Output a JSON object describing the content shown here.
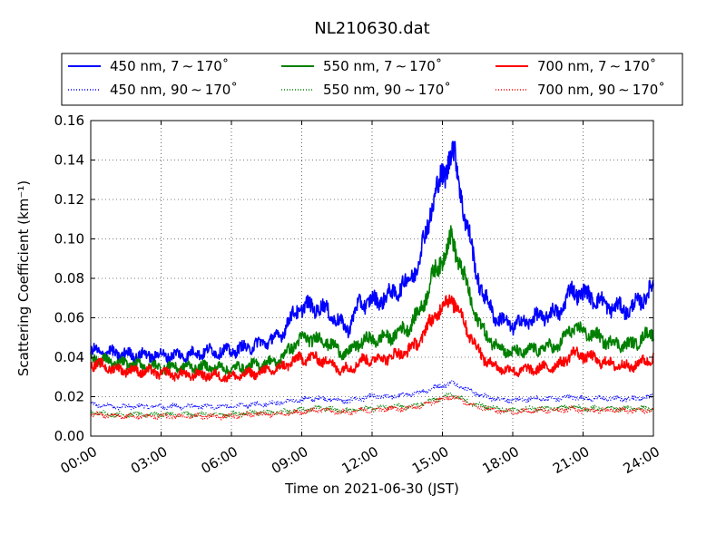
{
  "chart_data": {
    "type": "line",
    "title": "NL210630.dat",
    "xlabel": "Time on 2021-06-30 (JST)",
    "ylabel": "Scattering Coefficient (km⁻¹)",
    "xlim": [
      "00:00",
      "24:00"
    ],
    "ylim": [
      0.0,
      0.16
    ],
    "x_ticks": [
      "00:00",
      "03:00",
      "06:00",
      "09:00",
      "12:00",
      "15:00",
      "18:00",
      "21:00",
      "24:00"
    ],
    "y_ticks": [
      "0.00",
      "0.02",
      "0.04",
      "0.06",
      "0.08",
      "0.10",
      "0.12",
      "0.14",
      "0.16"
    ],
    "grid": true,
    "legend_position": "top",
    "x_hours": [
      0,
      1,
      2,
      3,
      4,
      5,
      6,
      7,
      8,
      8.8,
      9.3,
      10.1,
      10.6,
      11,
      11.5,
      12,
      12.7,
      13.5,
      14,
      14.5,
      14.8,
      15.1,
      15.4,
      15.7,
      16,
      16.4,
      16.8,
      17.3,
      18,
      19,
      20,
      20.5,
      21,
      21.5,
      22,
      23,
      24
    ],
    "series": [
      {
        "name": "450 nm, 7 ∼ 170˚",
        "style": "solid",
        "color": "#0000ff",
        "values": [
          0.043,
          0.042,
          0.041,
          0.041,
          0.041,
          0.043,
          0.043,
          0.046,
          0.05,
          0.064,
          0.066,
          0.064,
          0.057,
          0.055,
          0.068,
          0.068,
          0.071,
          0.078,
          0.088,
          0.115,
          0.125,
          0.135,
          0.146,
          0.13,
          0.11,
          0.085,
          0.07,
          0.06,
          0.056,
          0.06,
          0.063,
          0.074,
          0.072,
          0.07,
          0.066,
          0.064,
          0.075
        ]
      },
      {
        "name": "450 nm, 90 ∼ 170˚",
        "style": "dotted",
        "color": "#0000ff",
        "values": [
          0.016,
          0.015,
          0.015,
          0.015,
          0.015,
          0.015,
          0.015,
          0.016,
          0.017,
          0.018,
          0.019,
          0.019,
          0.018,
          0.018,
          0.019,
          0.02,
          0.02,
          0.021,
          0.022,
          0.024,
          0.025,
          0.026,
          0.027,
          0.026,
          0.024,
          0.022,
          0.02,
          0.019,
          0.018,
          0.019,
          0.019,
          0.02,
          0.019,
          0.019,
          0.019,
          0.019,
          0.02
        ]
      },
      {
        "name": "550 nm, 7 ∼ 170˚",
        "style": "solid",
        "color": "#008000",
        "values": [
          0.04,
          0.037,
          0.036,
          0.035,
          0.035,
          0.035,
          0.034,
          0.036,
          0.038,
          0.048,
          0.05,
          0.048,
          0.043,
          0.042,
          0.048,
          0.049,
          0.05,
          0.055,
          0.062,
          0.078,
          0.086,
          0.093,
          0.1,
          0.09,
          0.077,
          0.062,
          0.052,
          0.046,
          0.042,
          0.044,
          0.046,
          0.055,
          0.053,
          0.051,
          0.048,
          0.046,
          0.053
        ]
      },
      {
        "name": "550 nm, 90 ∼ 170˚",
        "style": "dotted",
        "color": "#008000",
        "values": [
          0.012,
          0.011,
          0.011,
          0.011,
          0.011,
          0.011,
          0.011,
          0.012,
          0.012,
          0.013,
          0.014,
          0.014,
          0.013,
          0.013,
          0.014,
          0.014,
          0.015,
          0.015,
          0.016,
          0.018,
          0.019,
          0.02,
          0.021,
          0.02,
          0.018,
          0.016,
          0.015,
          0.014,
          0.013,
          0.014,
          0.014,
          0.015,
          0.014,
          0.014,
          0.014,
          0.014,
          0.014
        ]
      },
      {
        "name": "700 nm, 7 ∼ 170˚",
        "style": "solid",
        "color": "#ff0000",
        "values": [
          0.037,
          0.034,
          0.033,
          0.032,
          0.031,
          0.031,
          0.03,
          0.032,
          0.034,
          0.039,
          0.04,
          0.038,
          0.034,
          0.034,
          0.038,
          0.039,
          0.04,
          0.043,
          0.048,
          0.058,
          0.063,
          0.067,
          0.07,
          0.064,
          0.056,
          0.046,
          0.039,
          0.035,
          0.033,
          0.034,
          0.036,
          0.042,
          0.041,
          0.039,
          0.037,
          0.035,
          0.04
        ]
      },
      {
        "name": "700 nm, 90 ∼ 170˚",
        "style": "dotted",
        "color": "#ff0000",
        "values": [
          0.011,
          0.01,
          0.01,
          0.01,
          0.01,
          0.01,
          0.01,
          0.011,
          0.011,
          0.012,
          0.013,
          0.013,
          0.012,
          0.012,
          0.013,
          0.013,
          0.014,
          0.014,
          0.015,
          0.017,
          0.018,
          0.019,
          0.02,
          0.019,
          0.017,
          0.015,
          0.014,
          0.013,
          0.012,
          0.013,
          0.013,
          0.014,
          0.013,
          0.013,
          0.013,
          0.013,
          0.013
        ]
      }
    ]
  }
}
